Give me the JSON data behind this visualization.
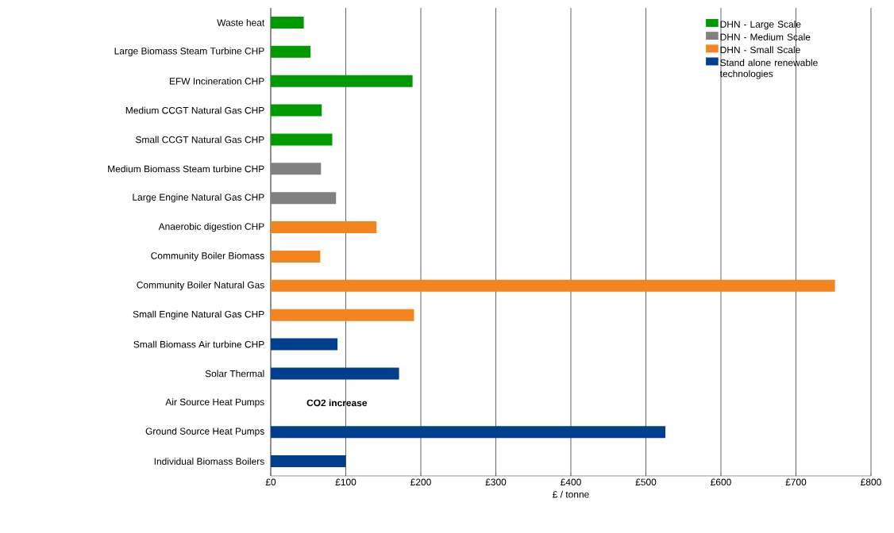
{
  "chart_data": {
    "type": "bar",
    "orientation": "horizontal",
    "xlabel": "£ / tonne",
    "categories": [
      "Waste heat",
      "Large Biomass Steam Turbine CHP",
      "EFW Incineration CHP",
      "Medium CCGT Natural Gas CHP",
      "Small CCGT Natural Gas CHP",
      "Medium Biomass Steam turbine CHP",
      "Large Engine Natural Gas CHP",
      "Anaerobic digestion CHP",
      "Community Boiler Biomass",
      "Community Boiler Natural Gas",
      "Small Engine Natural Gas CHP",
      "Small Biomass Air turbine CHP",
      "Solar Thermal",
      "Air Source Heat Pumps",
      "Ground Source Heat Pumps",
      "Individual Biomass Boilers"
    ],
    "series": [
      {
        "name": "DHN - Large Scale",
        "color": "#009900",
        "values": [
          44,
          53,
          189,
          68,
          82,
          null,
          null,
          null,
          null,
          null,
          null,
          null,
          null,
          null,
          null,
          null
        ]
      },
      {
        "name": "DHN - Medium Scale",
        "color": "#808080",
        "values": [
          null,
          null,
          null,
          null,
          null,
          67,
          87,
          null,
          null,
          null,
          null,
          null,
          null,
          null,
          null,
          null
        ]
      },
      {
        "name": "DHN - Small Scale",
        "color": "#f3841f",
        "values": [
          null,
          null,
          null,
          null,
          null,
          null,
          null,
          141,
          66,
          752,
          191,
          null,
          null,
          null,
          null,
          null
        ]
      },
      {
        "name": "Stand alone renewable technologies",
        "color": "#003f8e",
        "values": [
          null,
          null,
          null,
          null,
          null,
          null,
          null,
          null,
          null,
          null,
          null,
          89,
          171,
          null,
          526,
          100
        ]
      }
    ],
    "xlim": [
      0,
      800
    ],
    "xticks": [
      {
        "value": 0,
        "label": "£0"
      },
      {
        "value": 100,
        "label": "£100"
      },
      {
        "value": 200,
        "label": "£200"
      },
      {
        "value": 300,
        "label": "£300"
      },
      {
        "value": 400,
        "label": "£400"
      },
      {
        "value": 500,
        "label": "£500"
      },
      {
        "value": 600,
        "label": "£600"
      },
      {
        "value": 700,
        "label": "£700"
      },
      {
        "value": 800,
        "label": "£800"
      }
    ],
    "grid": "x",
    "legend": "top right",
    "annotations": [
      "CO2 increase"
    ]
  }
}
